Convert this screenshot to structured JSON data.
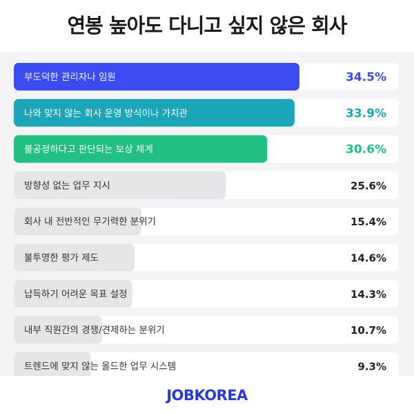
{
  "title": "연봉 높아도 다니고 싶지 않은 회사",
  "brand": "JOBKOREA",
  "colors": {
    "highlight_1": "#3b4bf1",
    "highlight_2": "#1aa6b6",
    "highlight_3": "#22be82",
    "default_bar": "#e6e6e9",
    "default_text": "#333333"
  },
  "chart_data": {
    "type": "bar",
    "orientation": "horizontal",
    "title": "연봉 높아도 다니고 싶지 않은 회사",
    "categories": [
      "부도덕한 관리자나 임원",
      "나와 맞지 않는 회사 운영 방식이나 가치관",
      "불공정하다고 판단되는 보상 체계",
      "방향성 없는 업무 지시",
      "회사 내 전반적인 무기력한 분위기",
      "불투명한 평가 제도",
      "납득하기 어려운 목표 설정",
      "내부 직원간의 경쟁/견제하는 분위기",
      "트렌드에 맞지 않는 올드한 업무 시스템"
    ],
    "values": [
      34.5,
      33.9,
      30.6,
      25.6,
      15.4,
      14.6,
      14.3,
      10.7,
      9.3
    ],
    "value_labels": [
      "34.5%",
      "33.9%",
      "30.6%",
      "25.6%",
      "15.4%",
      "14.6%",
      "14.3%",
      "10.7%",
      "9.3%"
    ],
    "unit": "%",
    "xlim": [
      0,
      42.5
    ],
    "highlighted_count": 3
  }
}
